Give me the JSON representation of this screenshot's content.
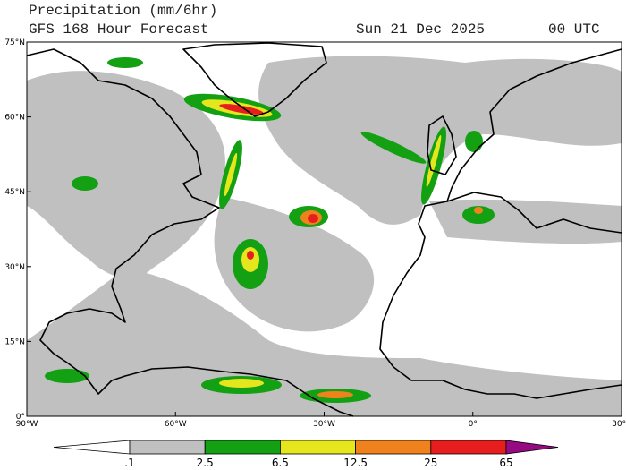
{
  "header": {
    "title": "Precipitation (mm/6hr)",
    "subtitle": "GFS 168 Hour Forecast",
    "date": "Sun 21 Dec 2025",
    "time": "00 UTC"
  },
  "map": {
    "lat_labels": [
      "75°N",
      "60°N",
      "45°N",
      "30°N",
      "15°N",
      "0°"
    ],
    "lon_labels": [
      "90°W",
      "60°W",
      "30°W",
      "0°",
      "30°E"
    ]
  },
  "colorbar": {
    "labels": [
      ".1",
      "2.5",
      "6.5",
      "12.5",
      "25",
      "65"
    ],
    "colors": [
      "#ffffff",
      "#c0c0c0",
      "#13a013",
      "#e6e61e",
      "#f0821e",
      "#e61e1e",
      "#960a82"
    ]
  }
}
